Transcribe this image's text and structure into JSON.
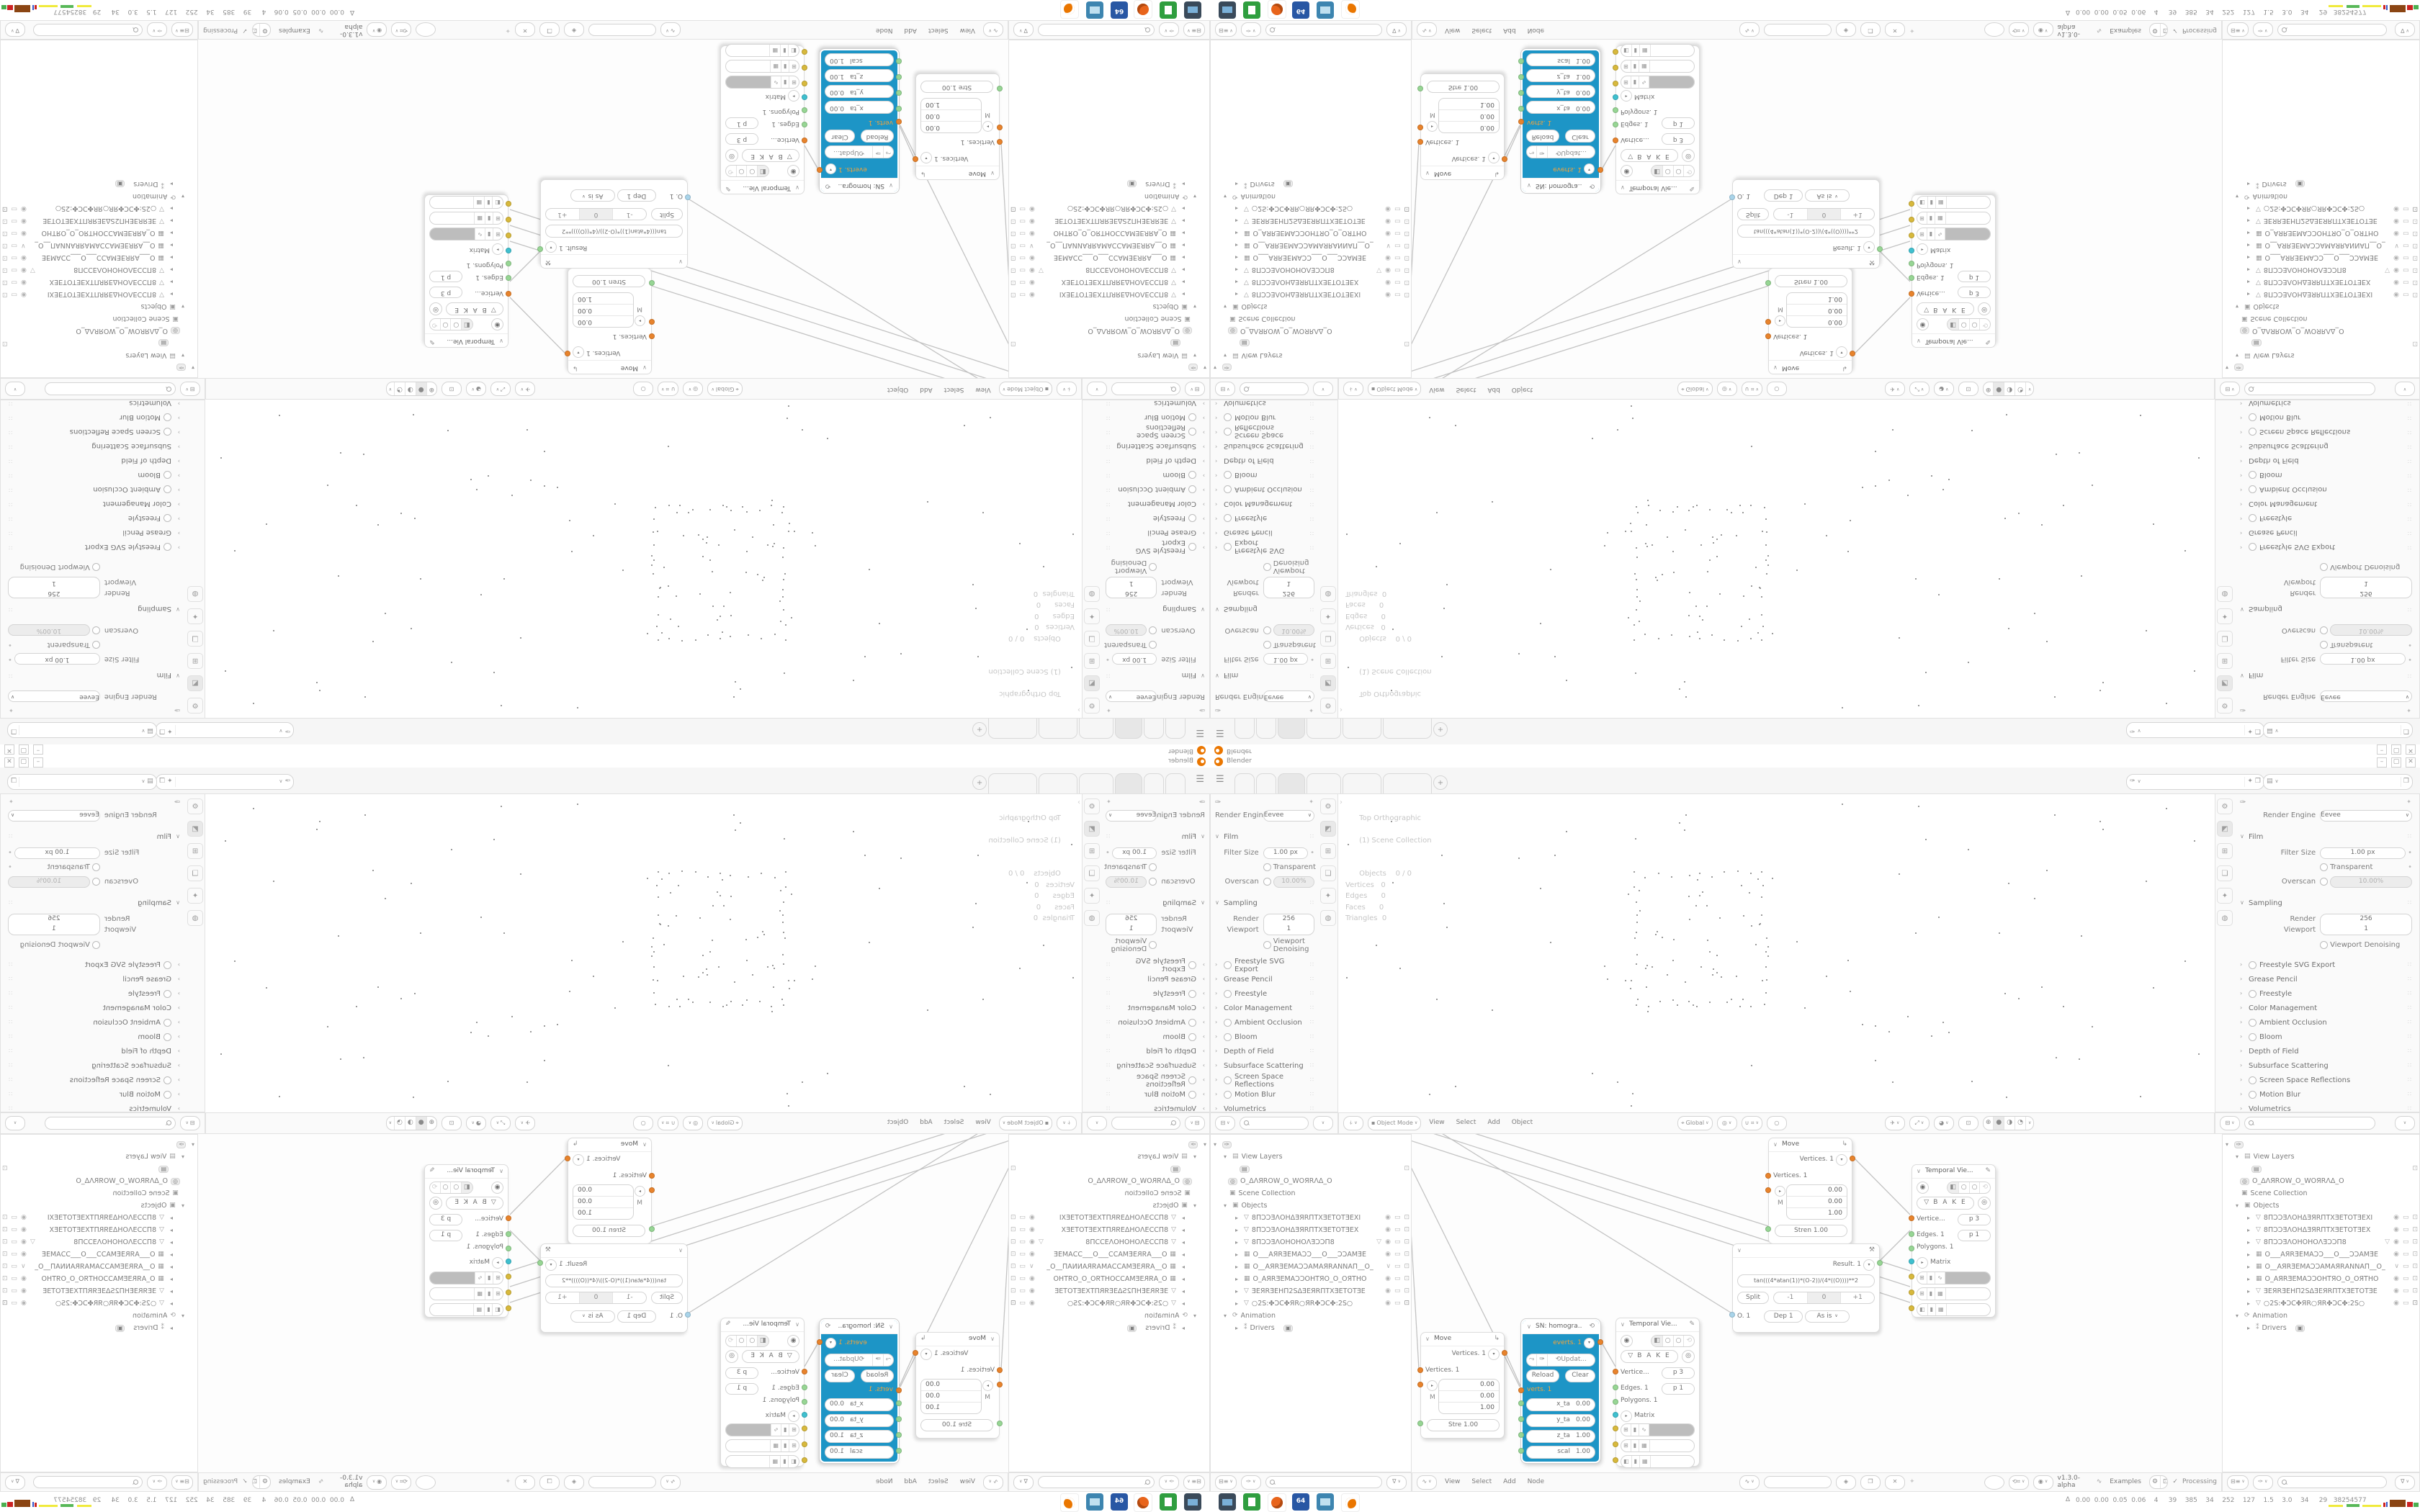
{
  "window": {
    "app_title": "Blender",
    "minimize": "–",
    "maximize": "▢",
    "close": "✕"
  },
  "topbar": {
    "menu_icon": "☰",
    "add_workspace": "+",
    "scene_selector_value": "",
    "view_layer_selector_value": ""
  },
  "properties": {
    "engine_label": "Render Engine",
    "engine_value": "Eevee",
    "film_title": "Film",
    "filter_size_label": "Filter Size",
    "filter_size_value": "1.00 px",
    "transparent_label": "Transparent",
    "overscan_label": "Overscan",
    "overscan_value": "10.00%",
    "sampling_title": "Sampling",
    "render_label": "Render",
    "render_value": "256",
    "viewport_label": "Viewport",
    "viewport_value": "1",
    "denoise_label": "Viewport Denoising",
    "collapsed": [
      {
        "label": "Freestyle SVG Export",
        "has_checkbox": true
      },
      {
        "label": "Grease Pencil",
        "has_checkbox": false
      },
      {
        "label": "Freestyle",
        "has_checkbox": true
      },
      {
        "label": "Color Management",
        "has_checkbox": false
      },
      {
        "label": "Ambient Occlusion",
        "has_checkbox": true
      },
      {
        "label": "Bloom",
        "has_checkbox": true
      },
      {
        "label": "Depth of Field",
        "has_checkbox": false
      },
      {
        "label": "Subsurface Scattering",
        "has_checkbox": false
      },
      {
        "label": "Screen Space Reflections",
        "has_checkbox": true
      },
      {
        "label": "Motion Blur",
        "has_checkbox": true
      },
      {
        "label": "Volumetrics",
        "has_checkbox": false
      }
    ]
  },
  "viewport": {
    "overlay_view": "Top Orthographic",
    "overlay_collection": "(1) Scene Collection",
    "overlay_stats": "Objects    0 / 0\nVertices   0\nEdges      0\nFaces      0\nTriangles  0",
    "mode": "Object Mode",
    "menu_view": "View",
    "menu_select": "Select",
    "menu_add": "Add",
    "menu_object": "Object",
    "orientation": "Global"
  },
  "outliner": {
    "view_layers": "View Layers",
    "scene_name": "O_ΔΛЯROW_O_WOЯRΛΔ_O",
    "scene_collection": "Scene Collection",
    "objects_label": "Objects",
    "objects": [
      {
        "name": "8ΠƆƆƎΛΟΗΔƎЯRΠΤΧƎΕΤΟΤƎΕΧΙ",
        "type_icon": "mesh"
      },
      {
        "name": "8ΠƆƆƎΛΟΗΔƎЯRΠΤΧƎΕΤΟΤƎΕΧ",
        "type_icon": "mesh"
      },
      {
        "name": "8ΠƆƆƎΛΟΗΟΗΟΛƎƆƆΠ8",
        "type_icon": "mesh"
      },
      {
        "name": "Ο___ΑЯRƎΕΜΑƆƆ___Ο___ƆƆΑΜƎΕ",
        "type_icon": "camera"
      },
      {
        "name": "Ο__ΑЯRƎΕΜΑƆƆΑΜΑЯRΑΝΝΑΠ__Ο_",
        "type_icon": "camera"
      },
      {
        "name": "Ο_ΑЯRƎΕΜΑƆƆΟΗΤЯΟ_Ο_ΟЯΤΗΟ",
        "type_icon": "camera"
      },
      {
        "name": "ƎΕЯRƎΕΗΠ2SΔƎΕЯRΠΤΧƎΕΤΟΤƎΕ",
        "type_icon": "mesh"
      },
      {
        "name": "○2S:✤ƆC✤ЯR○ЯR✤ƆC✤:2S○",
        "type_icon": "mesh"
      }
    ],
    "animation": "Animation",
    "drivers": "Drivers"
  },
  "node_editor": {
    "menu_view": "View",
    "menu_select": "Select",
    "menu_add": "Add",
    "menu_node": "Node",
    "version": "v1.3.0-alpha",
    "examples": "Examples",
    "processing": "Processing",
    "move1": {
      "title": "Move",
      "out": "Vertices. 1",
      "in": "Vertices. 1",
      "x": "0.00",
      "m": "M",
      "y": "0.00",
      "z": "1.00",
      "stren": "Stre  1.00"
    },
    "move2": {
      "title": "Move",
      "out": "Vertices. 1",
      "in": "Vertices. 1",
      "x": "0.00",
      "m": "M",
      "y": "0.00",
      "z": "1.00",
      "stren": "Stren  1.00"
    },
    "sn": {
      "title": "SN: homogra..",
      "out": "everts. 1",
      "update": "Updat...",
      "reload": "Reload",
      "clear": "Clear",
      "in": "verts. 1",
      "f0l": "x_ta",
      "f0v": "0.00",
      "f1l": "y_ta",
      "f1v": "0.00",
      "f2l": "z_ta",
      "f2v": "1.00",
      "f3l": "scal",
      "f3v": "1.00"
    },
    "temporal": {
      "title": "Temporal Vie...",
      "bake": "B A K E",
      "vertices": "Vertice...",
      "vertices_val": "p  3",
      "edges": "Edges. 1",
      "edges_val": "p  1",
      "polygons": "Polygons. 1",
      "matrix": "Matrix"
    },
    "result": {
      "out": "Result. 1",
      "expression": "tan(((4*atan(1))*(O-2))/(4*((O))))**2",
      "split": "Split",
      "minus1": "-1",
      "zero": "0",
      "plus1": "+1",
      "o_label": "O. 1",
      "dep": "Dep  1",
      "as_is": "As is"
    }
  },
  "status": {
    "stats_line": "0.00  0.00  0.05  0.06    4     39    385    34    252    127    1.5    3.0    34     29   38254577"
  },
  "colors": {
    "sn_node_teal": "#1d95c6",
    "socket_orange": "#e8832c",
    "socket_green": "#97d694",
    "socket_teal": "#3fc0cf",
    "socket_yellow": "#d8b93c",
    "socket_blue": "#a9d4ea",
    "blender_orange": "#ea7600"
  }
}
